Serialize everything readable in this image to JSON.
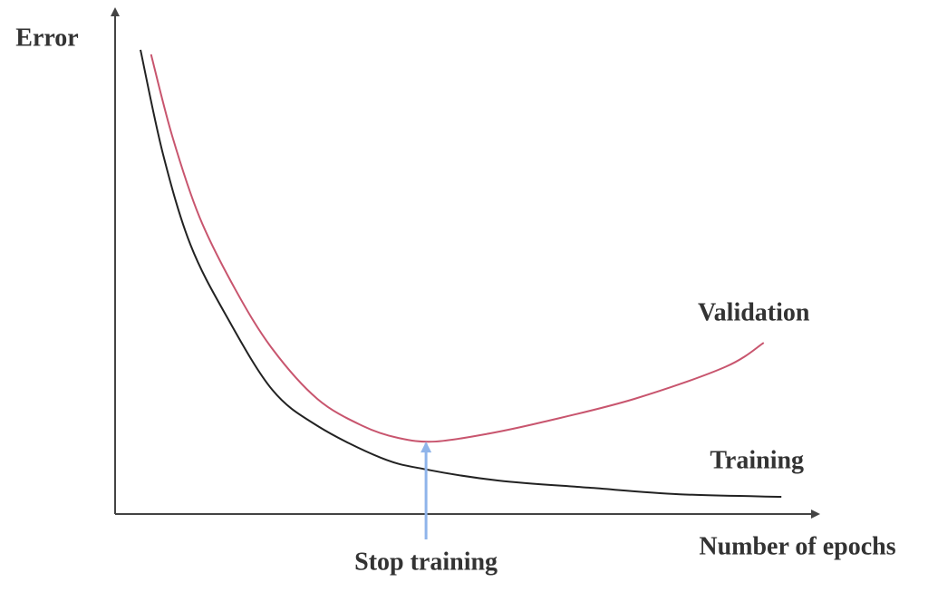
{
  "chart_data": {
    "type": "line",
    "y_label": "Error",
    "x_label": "Number of epochs",
    "xlim": [
      0,
      100
    ],
    "ylim": [
      0,
      100
    ],
    "xticks": [],
    "yticks": [],
    "series": [
      {
        "name": "Validation",
        "color": "#c8556e",
        "x": [
          5.1,
          8.1,
          12.0,
          17.1,
          22.3,
          28.7,
          35.1,
          40.2,
          45.4,
          53.1,
          60.8,
          73.6,
          86.5,
          92.0
        ],
        "values": [
          90.7,
          74.6,
          58.5,
          44.2,
          32.6,
          22.7,
          17.4,
          15.0,
          14.3,
          15.9,
          18.2,
          22.7,
          29.0,
          33.8
        ]
      },
      {
        "name": "Training",
        "color": "#222222",
        "x": [
          3.6,
          6.8,
          10.7,
          15.9,
          22.3,
          28.7,
          37.7,
          44.1,
          54.4,
          67.2,
          80.1,
          94.5
        ],
        "values": [
          91.6,
          71.0,
          53.1,
          38.8,
          24.5,
          17.4,
          11.1,
          8.8,
          6.6,
          5.2,
          3.9,
          3.4
        ]
      }
    ],
    "annotation": {
      "text": "Stop training",
      "x": 44.1,
      "y": 14.3,
      "color": "#8fb4ea"
    }
  }
}
